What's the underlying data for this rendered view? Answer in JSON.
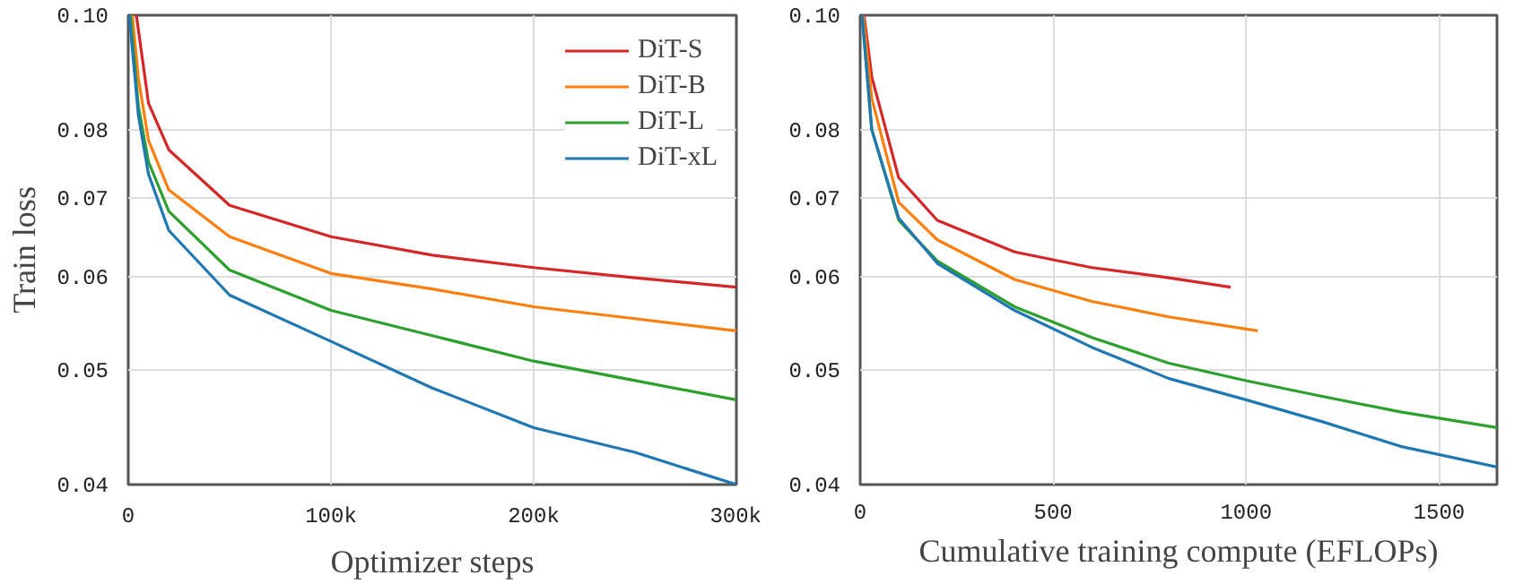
{
  "chart_data": [
    {
      "type": "line",
      "xlabel": "Optimizer steps",
      "ylabel": "Train loss",
      "log": "y",
      "grid": true,
      "legend": "top right",
      "xlim": [
        0,
        300000
      ],
      "ylim": [
        0.04,
        0.1
      ],
      "xticks": [
        0,
        {
          "value": 100000,
          "label": "100k"
        },
        {
          "value": 200000,
          "label": "200k"
        },
        {
          "value": 300000,
          "label": "300k"
        }
      ],
      "yticks": [
        {
          "value": 0.04,
          "label": "0.04"
        },
        {
          "value": 0.05,
          "label": "0.05"
        },
        {
          "value": 0.06,
          "label": "0.06"
        },
        {
          "value": 0.07,
          "label": "0.07"
        },
        {
          "value": 0.08,
          "label": "0.08"
        },
        {
          "value": 0.1,
          "label": "0.10"
        }
      ],
      "series": [
        {
          "name": "DiT-S",
          "color": "#d62728",
          "x": [
            4000,
            10000,
            20000,
            50000,
            100000,
            150000,
            200000,
            250000,
            300000
          ],
          "values": [
            0.1,
            0.0842,
            0.0769,
            0.069,
            0.0649,
            0.0626,
            0.0611,
            0.0599,
            0.0588
          ]
        },
        {
          "name": "DiT-B",
          "color": "#ff7f0e",
          "x": [
            2000,
            5000,
            10000,
            20000,
            50000,
            100000,
            150000,
            200000,
            250000,
            300000
          ],
          "values": [
            0.1,
            0.0884,
            0.0783,
            0.0711,
            0.0649,
            0.0604,
            0.0586,
            0.0566,
            0.0553,
            0.054
          ]
        },
        {
          "name": "DiT-L",
          "color": "#2ca02c",
          "x": [
            1000,
            5000,
            10000,
            20000,
            50000,
            100000,
            150000,
            200000,
            250000,
            300000
          ],
          "values": [
            0.1,
            0.0837,
            0.0751,
            0.0682,
            0.0608,
            0.0562,
            0.0535,
            0.0509,
            0.049,
            0.0472
          ]
        },
        {
          "name": "DiT-xL",
          "color": "#1f77b4",
          "x": [
            500,
            5000,
            10000,
            20000,
            50000,
            100000,
            150000,
            200000,
            250000,
            300000
          ],
          "values": [
            0.1,
            0.0822,
            0.0733,
            0.0657,
            0.0579,
            0.0529,
            0.0483,
            0.0447,
            0.0426,
            0.04
          ]
        }
      ]
    },
    {
      "type": "line",
      "xlabel": "Cumulative training compute (EFLOPs)",
      "log": "y",
      "grid": true,
      "xlim": [
        0,
        1650
      ],
      "ylim": [
        0.04,
        0.1
      ],
      "xticks": [
        0,
        500,
        1000,
        1500
      ],
      "yticks": [
        {
          "value": 0.04,
          "label": "0.04"
        },
        {
          "value": 0.05,
          "label": "0.05"
        },
        {
          "value": 0.06,
          "label": "0.06"
        },
        {
          "value": 0.07,
          "label": "0.07"
        },
        {
          "value": 0.08,
          "label": "0.08"
        },
        {
          "value": 0.1,
          "label": "0.10"
        }
      ],
      "series": [
        {
          "color": "#d62728",
          "x": [
            10,
            30,
            100,
            200,
            400,
            600,
            800,
            960
          ],
          "values": [
            0.1,
            0.0887,
            0.0728,
            0.067,
            0.063,
            0.0611,
            0.0599,
            0.0588
          ]
        },
        {
          "color": "#ff7f0e",
          "x": [
            8,
            30,
            100,
            200,
            400,
            600,
            800,
            1030
          ],
          "values": [
            0.1,
            0.085,
            0.0694,
            0.0645,
            0.0597,
            0.0572,
            0.0555,
            0.054
          ]
        },
        {
          "color": "#2ca02c",
          "x": [
            5,
            30,
            100,
            200,
            400,
            600,
            800,
            1000,
            1200,
            1400,
            1650
          ],
          "values": [
            0.1,
            0.08,
            0.067,
            0.0619,
            0.0566,
            0.0533,
            0.0507,
            0.049,
            0.0475,
            0.0461,
            0.0447
          ]
        },
        {
          "color": "#1f77b4",
          "x": [
            5,
            30,
            100,
            200,
            400,
            600,
            800,
            1000,
            1200,
            1400,
            1650
          ],
          "values": [
            0.1,
            0.08,
            0.0673,
            0.0616,
            0.0562,
            0.0523,
            0.0492,
            0.0472,
            0.0452,
            0.0431,
            0.0414
          ]
        }
      ]
    }
  ]
}
